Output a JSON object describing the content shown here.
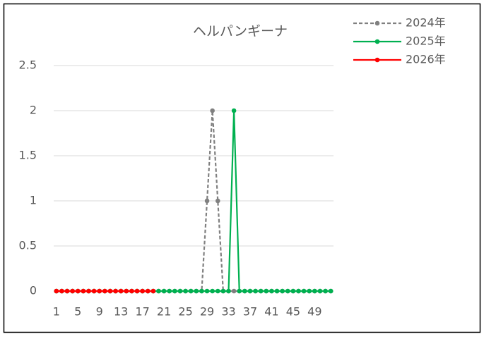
{
  "chart_data": {
    "type": "line",
    "title": "ヘルパンギーナ",
    "categories": [
      "1",
      null,
      null,
      null,
      "5",
      null,
      null,
      null,
      "9",
      null,
      null,
      null,
      "13",
      null,
      null,
      null,
      "17",
      null,
      null,
      null,
      "21",
      null,
      null,
      null,
      "25",
      null,
      null,
      null,
      "29",
      null,
      null,
      null,
      "33",
      null,
      null,
      null,
      "37",
      null,
      null,
      null,
      "41",
      null,
      null,
      null,
      "45",
      null,
      null,
      null,
      "49",
      null,
      null,
      null
    ],
    "series": [
      {
        "name": "2024年",
        "color": "#808080",
        "dash": true,
        "values": [
          0,
          0,
          0,
          0,
          0,
          0,
          0,
          0,
          0,
          0,
          0,
          0,
          0,
          0,
          0,
          0,
          0,
          0,
          0,
          0,
          0,
          0,
          0,
          0,
          0,
          0,
          0,
          0,
          1,
          2,
          1,
          0,
          0,
          0,
          0,
          0,
          0,
          0,
          0,
          0,
          0,
          0,
          0,
          0,
          0,
          0,
          0,
          0,
          0,
          0,
          0,
          0
        ]
      },
      {
        "name": "2025年",
        "color": "#00b050",
        "dash": false,
        "values": [
          0,
          0,
          0,
          0,
          0,
          0,
          0,
          0,
          0,
          0,
          0,
          0,
          0,
          0,
          0,
          0,
          0,
          0,
          0,
          0,
          0,
          0,
          0,
          0,
          0,
          0,
          0,
          0,
          0,
          0,
          0,
          0,
          0,
          2,
          0,
          0,
          0,
          0,
          0,
          0,
          0,
          0,
          0,
          0,
          0,
          0,
          0,
          0,
          0,
          0,
          0,
          0
        ]
      },
      {
        "name": "2026年",
        "color": "#ff0000",
        "dash": false,
        "values": [
          0,
          0,
          0,
          0,
          0,
          0,
          0,
          0,
          0,
          0,
          0,
          0,
          0,
          0,
          0,
          0,
          0,
          0,
          0,
          null,
          null,
          null,
          null,
          null,
          null,
          null,
          null,
          null,
          null,
          null,
          null,
          null,
          null,
          null,
          null,
          null,
          null,
          null,
          null,
          null,
          null,
          null,
          null,
          null,
          null,
          null,
          null,
          null,
          null,
          null,
          null,
          null
        ]
      }
    ],
    "ylim": [
      0,
      2.5
    ],
    "yticks": [
      0,
      0.5,
      1,
      1.5,
      2,
      2.5
    ],
    "grid": true,
    "legend": "top-right"
  }
}
